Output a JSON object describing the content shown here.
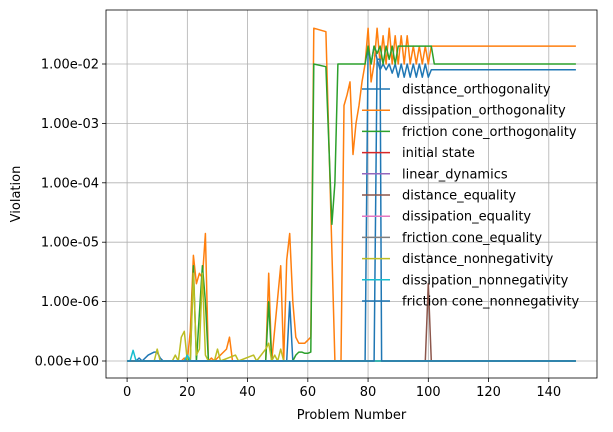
{
  "chart_data": {
    "type": "line",
    "xlabel": "Problem Number",
    "ylabel": "Violation",
    "xlim": [
      -7,
      156
    ],
    "x_ticks": [
      0,
      20,
      40,
      60,
      80,
      100,
      120,
      140
    ],
    "y_scale": "symlog (linear near zero)",
    "y_tick_values": [
      0,
      1e-06,
      1e-05,
      0.0001,
      0.001,
      0.01
    ],
    "y_tick_labels": [
      "0.00e+00",
      "1.00e-06",
      "1.00e-05",
      "1.00e-04",
      "1.00e-03",
      "1.00e-02"
    ],
    "grid": true,
    "legend_position": "center-right",
    "series": [
      {
        "name": "distance_orthogonality",
        "color": "#1f77b4",
        "points": [
          [
            0,
            0
          ],
          [
            3,
            0
          ],
          [
            4,
            5e-08
          ],
          [
            5,
            0
          ],
          [
            7,
            1e-07
          ],
          [
            9,
            1.5e-07
          ],
          [
            10,
            1.5e-07
          ],
          [
            11,
            5e-08
          ],
          [
            12,
            0
          ],
          [
            53,
            0
          ],
          [
            54,
            1e-06
          ],
          [
            55,
            0
          ],
          [
            79,
            0
          ],
          [
            80,
            0.02
          ],
          [
            81,
            0.01
          ],
          [
            82,
            0.02
          ],
          [
            83,
            0.012
          ],
          [
            84,
            0.008
          ],
          [
            85,
            0.01
          ],
          [
            86,
            0.008
          ],
          [
            87,
            0.01
          ],
          [
            88,
            0.007
          ],
          [
            89,
            0.01
          ],
          [
            90,
            0.006
          ],
          [
            91,
            0.01
          ],
          [
            92,
            0.006
          ],
          [
            93,
            0.01
          ],
          [
            94,
            0.006
          ],
          [
            95,
            0.01
          ],
          [
            96,
            0.006
          ],
          [
            97,
            0.01
          ],
          [
            98,
            0.006
          ],
          [
            99,
            0.01
          ],
          [
            100,
            0.006
          ],
          [
            101,
            0.008
          ],
          [
            149,
            0.008
          ]
        ]
      },
      {
        "name": "dissipation_orthogonality",
        "color": "#ff7f0e",
        "points": [
          [
            0,
            0
          ],
          [
            18,
            0
          ],
          [
            19,
            5e-08
          ],
          [
            20,
            0
          ],
          [
            21,
            5e-07
          ],
          [
            22,
            6e-06
          ],
          [
            23,
            2e-06
          ],
          [
            24,
            3e-06
          ],
          [
            25,
            2.5e-06
          ],
          [
            26,
            1.4e-05
          ],
          [
            27,
            0
          ],
          [
            28,
            5e-08
          ],
          [
            29,
            0
          ],
          [
            33,
            2e-07
          ],
          [
            34,
            4e-07
          ],
          [
            35,
            0
          ],
          [
            46,
            0
          ],
          [
            47,
            3e-06
          ],
          [
            48,
            0
          ],
          [
            51,
            4e-06
          ],
          [
            52,
            0
          ],
          [
            53,
            5e-06
          ],
          [
            54,
            1.4e-05
          ],
          [
            55,
            1e-06
          ],
          [
            56,
            4e-07
          ],
          [
            57,
            3e-07
          ],
          [
            58,
            3e-07
          ],
          [
            59,
            3e-07
          ],
          [
            60,
            3.5e-07
          ],
          [
            61,
            4e-07
          ],
          [
            62,
            0.04
          ],
          [
            66,
            0.035
          ],
          [
            69,
            0
          ],
          [
            70,
            0
          ],
          [
            71,
            0
          ],
          [
            72,
            0.002
          ],
          [
            73,
            0.003
          ],
          [
            74,
            0.005
          ],
          [
            75,
            0.0003
          ],
          [
            76,
            0.001
          ],
          [
            77,
            0.002
          ],
          [
            78,
            0.005
          ],
          [
            79,
            0.01
          ],
          [
            80,
            0.04
          ],
          [
            81,
            0.005
          ],
          [
            82,
            0.01
          ],
          [
            83,
            0.04
          ],
          [
            84,
            0.01
          ],
          [
            85,
            0.03
          ],
          [
            86,
            0.01
          ],
          [
            87,
            0.04
          ],
          [
            88,
            0.01
          ],
          [
            89,
            0.03
          ],
          [
            90,
            0.01
          ],
          [
            91,
            0.03
          ],
          [
            92,
            0.01
          ],
          [
            93,
            0.03
          ],
          [
            94,
            0.01
          ],
          [
            95,
            0.02
          ],
          [
            96,
            0.01
          ],
          [
            97,
            0.02
          ],
          [
            98,
            0.01
          ],
          [
            99,
            0.02
          ],
          [
            100,
            0.01
          ],
          [
            101,
            0.02
          ],
          [
            149,
            0.02
          ]
        ]
      },
      {
        "name": "friction cone_orthogonality",
        "color": "#2ca02c",
        "points": [
          [
            0,
            0
          ],
          [
            19,
            0
          ],
          [
            20,
            5e-08
          ],
          [
            21,
            0
          ],
          [
            22,
            4e-06
          ],
          [
            23,
            0
          ],
          [
            25,
            4e-06
          ],
          [
            26,
            1e-06
          ],
          [
            27,
            0
          ],
          [
            46,
            0
          ],
          [
            47,
            1e-06
          ],
          [
            48,
            0
          ],
          [
            55,
            0
          ],
          [
            56,
            1e-07
          ],
          [
            57,
            1.5e-07
          ],
          [
            58,
            1.5e-07
          ],
          [
            59,
            1.3e-07
          ],
          [
            60,
            1.3e-07
          ],
          [
            61,
            1.5e-07
          ],
          [
            62,
            0.01
          ],
          [
            66,
            0.009
          ],
          [
            68,
            2e-05
          ],
          [
            69,
            0.0001
          ],
          [
            70,
            0.01
          ],
          [
            71,
            0.01
          ],
          [
            79,
            0.01
          ],
          [
            80,
            0.02
          ],
          [
            81,
            0.01
          ],
          [
            82,
            0.02
          ],
          [
            83,
            0.015
          ],
          [
            84,
            0.02
          ],
          [
            85,
            0.01
          ],
          [
            86,
            0.02
          ],
          [
            87,
            0.012
          ],
          [
            88,
            0.02
          ],
          [
            89,
            0.01
          ],
          [
            90,
            0.02
          ],
          [
            101,
            0.02
          ],
          [
            102,
            0.01
          ],
          [
            149,
            0.01
          ]
        ]
      },
      {
        "name": "initial state",
        "color": "#d62728",
        "points": [
          [
            0,
            0
          ],
          [
            149,
            0
          ]
        ]
      },
      {
        "name": "linear_dynamics",
        "color": "#9467bd",
        "points": [
          [
            0,
            0
          ],
          [
            149,
            0
          ]
        ]
      },
      {
        "name": "distance_equality",
        "color": "#8c564b",
        "points": [
          [
            0,
            0
          ],
          [
            99,
            0
          ],
          [
            100,
            2e-06
          ],
          [
            101,
            0
          ],
          [
            149,
            0
          ]
        ]
      },
      {
        "name": "dissipation_equality",
        "color": "#e377c2",
        "points": [
          [
            0,
            0
          ],
          [
            149,
            0
          ]
        ]
      },
      {
        "name": "friction cone_equality",
        "color": "#7f7f7f",
        "points": [
          [
            0,
            0
          ],
          [
            149,
            0
          ]
        ]
      },
      {
        "name": "distance_nonnegativity",
        "color": "#bcbd22",
        "points": [
          [
            0,
            0
          ],
          [
            9,
            0
          ],
          [
            10,
            2e-07
          ],
          [
            11,
            0
          ],
          [
            15,
            0
          ],
          [
            16,
            1e-07
          ],
          [
            17,
            0
          ],
          [
            18,
            4e-07
          ],
          [
            19,
            5e-07
          ],
          [
            20,
            0
          ],
          [
            21,
            0
          ],
          [
            22,
            3e-06
          ],
          [
            23,
            1e-07
          ],
          [
            24,
            2e-07
          ],
          [
            25,
            3e-06
          ],
          [
            26,
            1e-07
          ],
          [
            27,
            0
          ],
          [
            29,
            0
          ],
          [
            30,
            2e-07
          ],
          [
            31,
            0
          ],
          [
            36,
            1e-07
          ],
          [
            37,
            0
          ],
          [
            42,
            1e-07
          ],
          [
            43,
            0
          ],
          [
            46,
            2e-07
          ],
          [
            47,
            3e-07
          ],
          [
            48,
            0
          ],
          [
            49,
            1e-07
          ],
          [
            50,
            0
          ],
          [
            51,
            2e-07
          ],
          [
            52,
            0
          ],
          [
            149,
            0
          ]
        ]
      },
      {
        "name": "dissipation_nonnegativity",
        "color": "#17becf",
        "points": [
          [
            0,
            0
          ],
          [
            1,
            0
          ],
          [
            2,
            1.8e-07
          ],
          [
            3,
            0
          ],
          [
            19,
            0
          ],
          [
            20,
            1e-07
          ],
          [
            21,
            0
          ],
          [
            149,
            0
          ]
        ]
      },
      {
        "name": "friction cone_nonnegativity",
        "color": "#1f77b4",
        "points": [
          [
            0,
            0
          ],
          [
            82,
            0
          ],
          [
            83,
            0.012
          ],
          [
            84,
            0.012
          ],
          [
            84.5,
            0
          ],
          [
            149,
            0
          ]
        ]
      }
    ]
  }
}
